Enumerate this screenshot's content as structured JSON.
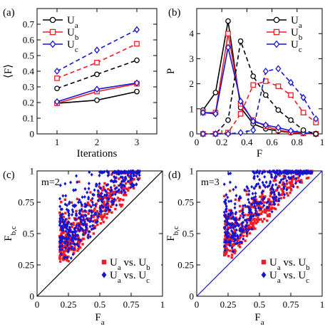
{
  "colors": {
    "a": "#000000",
    "b": "#ee1c24",
    "c": "#1414d2"
  },
  "chart_data": [
    {
      "panel": "(a)",
      "type": "line",
      "xlabel": "Iterations",
      "ylabel": "⟨F⟩",
      "xlim": [
        0.5,
        3.5
      ],
      "ylim": [
        0,
        0.8
      ],
      "xticks": [
        1,
        2,
        3
      ],
      "yticks": [
        0,
        0.1,
        0.2,
        0.3,
        0.4,
        0.5,
        0.6,
        0.7
      ],
      "ytick_labels": [
        "0",
        "0.1",
        "0.2",
        "0.3",
        "0.4",
        "0.5",
        "0.6",
        "0.7"
      ],
      "legend": {
        "position": "top-left",
        "entries": [
          {
            "base": "U",
            "sub": "a",
            "key": "a",
            "marker": "circle"
          },
          {
            "base": "U",
            "sub": "b",
            "key": "b",
            "marker": "square"
          },
          {
            "base": "U",
            "sub": "c",
            "key": "c",
            "marker": "diamond"
          }
        ]
      },
      "series": [
        {
          "key": "a",
          "style": "solid",
          "marker": "circle",
          "x": [
            1,
            2,
            3
          ],
          "y": [
            0.195,
            0.215,
            0.27
          ]
        },
        {
          "key": "b",
          "style": "solid",
          "marker": "square",
          "x": [
            1,
            2,
            3
          ],
          "y": [
            0.195,
            0.27,
            0.32
          ]
        },
        {
          "key": "c",
          "style": "solid",
          "marker": "diamond",
          "x": [
            1,
            2,
            3
          ],
          "y": [
            0.205,
            0.285,
            0.325
          ]
        },
        {
          "key": "a",
          "style": "dashed",
          "marker": "circle",
          "x": [
            1,
            2,
            3
          ],
          "y": [
            0.29,
            0.38,
            0.47
          ]
        },
        {
          "key": "b",
          "style": "dashed",
          "marker": "square",
          "x": [
            1,
            2,
            3
          ],
          "y": [
            0.355,
            0.455,
            0.575
          ]
        },
        {
          "key": "c",
          "style": "dashed",
          "marker": "diamond",
          "x": [
            1,
            2,
            3
          ],
          "y": [
            0.4,
            0.535,
            0.665
          ]
        }
      ]
    },
    {
      "panel": "(b)",
      "type": "line",
      "xlabel": "F",
      "ylabel": "P",
      "xlim": [
        0,
        1
      ],
      "ylim": [
        0,
        5
      ],
      "xticks": [
        0,
        0.2,
        0.4,
        0.6,
        0.8,
        1
      ],
      "xtick_labels": [
        "0",
        "0.2",
        "0.4",
        "0.6",
        "0.8",
        "1"
      ],
      "yticks": [
        0,
        1,
        2,
        3,
        4
      ],
      "ytick_labels": [
        "0",
        "1",
        "2",
        "3",
        "4"
      ],
      "legend": {
        "position": "top-right",
        "entries": [
          {
            "base": "U",
            "sub": "a",
            "key": "a",
            "marker": "circle"
          },
          {
            "base": "U",
            "sub": "b",
            "key": "b",
            "marker": "square"
          },
          {
            "base": "U",
            "sub": "c",
            "key": "c",
            "marker": "diamond"
          }
        ]
      },
      "series": [
        {
          "key": "a",
          "style": "solid",
          "marker": "circle",
          "x": [
            0.05,
            0.15,
            0.25,
            0.35,
            0.45,
            0.55,
            0.65,
            0.75,
            0.85,
            0.95
          ],
          "y": [
            0.95,
            1.65,
            4.5,
            1.05,
            0.4,
            0.2,
            0.12,
            0.05,
            0.02,
            0
          ]
        },
        {
          "key": "b",
          "style": "solid",
          "marker": "square",
          "x": [
            0.05,
            0.15,
            0.25,
            0.35,
            0.45,
            0.55,
            0.65,
            0.75,
            0.85,
            0.95
          ],
          "y": [
            0.85,
            0.85,
            4.0,
            1.2,
            0.55,
            0.3,
            0.15,
            0.07,
            0.02,
            0
          ]
        },
        {
          "key": "c",
          "style": "solid",
          "marker": "diamond",
          "x": [
            0.05,
            0.15,
            0.25,
            0.35,
            0.45,
            0.55,
            0.65,
            0.75,
            0.85,
            0.95
          ],
          "y": [
            0.85,
            0.8,
            3.45,
            1.3,
            0.5,
            0.35,
            0.25,
            0.12,
            0.05,
            0
          ]
        },
        {
          "key": "a",
          "style": "dashed",
          "marker": "circle",
          "x": [
            0.05,
            0.15,
            0.25,
            0.35,
            0.45,
            0.55,
            0.65,
            0.75,
            0.85,
            0.95
          ],
          "y": [
            0,
            0,
            0.55,
            3.7,
            2.3,
            1.55,
            0.95,
            0.55,
            0.15,
            0
          ]
        },
        {
          "key": "b",
          "style": "dashed",
          "marker": "square",
          "x": [
            0.05,
            0.15,
            0.25,
            0.35,
            0.45,
            0.55,
            0.65,
            0.75,
            0.85,
            0.95
          ],
          "y": [
            0,
            0,
            0.05,
            0.8,
            1.95,
            2.1,
            1.9,
            1.55,
            0.85,
            0.45
          ]
        },
        {
          "key": "c",
          "style": "dashed",
          "marker": "diamond",
          "x": [
            0.05,
            0.15,
            0.25,
            0.35,
            0.45,
            0.55,
            0.65,
            0.75,
            0.85,
            0.95
          ],
          "y": [
            0,
            0,
            0,
            0.05,
            0.15,
            2.5,
            2.6,
            2.05,
            1.45,
            0.6
          ]
        }
      ]
    },
    {
      "panel": "(c)",
      "type": "scatter",
      "annotation": "m=2",
      "xlabel": {
        "base": "F",
        "sub": "a"
      },
      "ylabel": {
        "base": "F",
        "sub": "b,c"
      },
      "xlim": [
        0,
        1
      ],
      "ylim": [
        0,
        1
      ],
      "xticks": [
        0,
        0.25,
        0.5,
        0.75,
        1
      ],
      "xtick_labels": [
        "0",
        "0.25",
        "0.5",
        "0.75",
        "1"
      ],
      "yticks": [
        0,
        0.25,
        0.5,
        0.75,
        1
      ],
      "ytick_labels": [
        "0",
        "0.25",
        "0.5",
        "0.75",
        "1"
      ],
      "diagonal_color": "#000000",
      "legend": {
        "position": "bottom-right",
        "entries": [
          {
            "key": "b",
            "marker": "square",
            "parts": [
              "U",
              "a",
              " vs. U",
              "b"
            ]
          },
          {
            "key": "c",
            "marker": "diamond",
            "parts": [
              "U",
              "a",
              " vs. U",
              "c"
            ]
          }
        ]
      },
      "cloud": {
        "count": 420,
        "seed": 7,
        "x_range": [
          0.18,
          0.82
        ],
        "y_floor": 0.27,
        "y_ceiling": 1.0
      }
    },
    {
      "panel": "(d)",
      "type": "scatter",
      "annotation": "m=3",
      "xlabel": {
        "base": "F",
        "sub": "a"
      },
      "ylabel": {
        "base": "F",
        "sub": "b,c"
      },
      "xlim": [
        0,
        1
      ],
      "ylim": [
        0,
        1
      ],
      "xticks": [
        0,
        0.25,
        0.5,
        0.75,
        1
      ],
      "xtick_labels": [
        "0",
        "0.25",
        "0.5",
        "0.75",
        "1"
      ],
      "yticks": [
        0,
        0.25,
        0.5,
        0.75,
        1
      ],
      "ytick_labels": [
        "0",
        "0.25",
        "0.5",
        "0.75",
        "1"
      ],
      "diagonal_color": "#1414d2",
      "legend": {
        "position": "bottom-right",
        "entries": [
          {
            "key": "b",
            "marker": "square",
            "parts": [
              "U",
              "a",
              " vs. U",
              "b"
            ]
          },
          {
            "key": "c",
            "marker": "diamond",
            "parts": [
              "U",
              "a",
              " vs. U",
              "c"
            ]
          }
        ]
      },
      "cloud": {
        "count": 420,
        "seed": 13,
        "x_range": [
          0.22,
          0.92
        ],
        "y_floor": 0.3,
        "y_ceiling": 1.0
      }
    }
  ]
}
